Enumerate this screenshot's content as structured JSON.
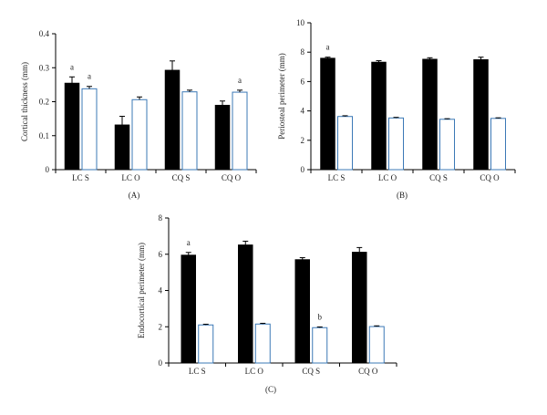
{
  "chart_data": [
    {
      "type": "bar",
      "panel": "(A)",
      "categories": [
        "LC S",
        "LC O",
        "CQ S",
        "CQ O"
      ],
      "ylabel": "Cortical thickness (mm)",
      "xlabel": "",
      "ylim": [
        0,
        0.4
      ],
      "yticks": [
        "0",
        "0.1",
        "0.2",
        "0.3",
        "0.4"
      ],
      "ytick_values": [
        0,
        0.1,
        0.2,
        0.3,
        0.4
      ],
      "grid": false,
      "series": [
        {
          "fill": "#000000",
          "values": [
            0.255,
            0.132,
            0.293,
            0.19
          ],
          "errors": [
            0.018,
            0.025,
            0.027,
            0.012
          ]
        },
        {
          "fill": "#ffffff",
          "values": [
            0.238,
            0.206,
            0.229,
            0.228
          ],
          "errors": [
            0.007,
            0.008,
            0.005,
            0.006
          ]
        }
      ],
      "annotations": [
        {
          "text": "a",
          "category": 0,
          "series": 0
        },
        {
          "text": "a",
          "category": 0,
          "series": 1
        },
        {
          "text": "a",
          "category": 3,
          "series": 1
        }
      ]
    },
    {
      "type": "bar",
      "panel": "(B)",
      "categories": [
        "LC S",
        "LC O",
        "CQ S",
        "CQ O"
      ],
      "ylabel": "Periosteal perimeter (mm)",
      "xlabel": "",
      "ylim": [
        0,
        10
      ],
      "yticks": [
        "0",
        "2",
        "4",
        "6",
        "8",
        "10"
      ],
      "ytick_values": [
        0,
        2,
        4,
        6,
        8,
        10
      ],
      "grid": false,
      "series": [
        {
          "fill": "#000000",
          "values": [
            7.6,
            7.33,
            7.53,
            7.5
          ],
          "errors": [
            0.06,
            0.09,
            0.09,
            0.16
          ]
        },
        {
          "fill": "#ffffff",
          "values": [
            3.62,
            3.52,
            3.43,
            3.49
          ],
          "errors": [
            0.05,
            0.04,
            0.04,
            0.04
          ]
        }
      ],
      "annotations": [
        {
          "text": "a",
          "category": 0,
          "series": 0
        }
      ]
    },
    {
      "type": "bar",
      "panel": "(C)",
      "categories": [
        "LC S",
        "LC O",
        "CQ S",
        "CQ O"
      ],
      "ylabel": "Endocortical perimeter (mm)",
      "xlabel": "",
      "ylim": [
        0,
        8
      ],
      "yticks": [
        "0",
        "2",
        "4",
        "6",
        "8"
      ],
      "ytick_values": [
        0,
        2,
        4,
        6,
        8
      ],
      "grid": false,
      "series": [
        {
          "fill": "#000000",
          "values": [
            5.96,
            6.52,
            5.71,
            6.12
          ],
          "errors": [
            0.14,
            0.2,
            0.1,
            0.25
          ]
        },
        {
          "fill": "#ffffff",
          "values": [
            2.1,
            2.15,
            1.95,
            2.01
          ],
          "errors": [
            0.04,
            0.04,
            0.04,
            0.04
          ]
        }
      ],
      "annotations": [
        {
          "text": "a",
          "category": 0,
          "series": 0
        },
        {
          "text": "b",
          "category": 2,
          "series": 1
        }
      ]
    }
  ]
}
